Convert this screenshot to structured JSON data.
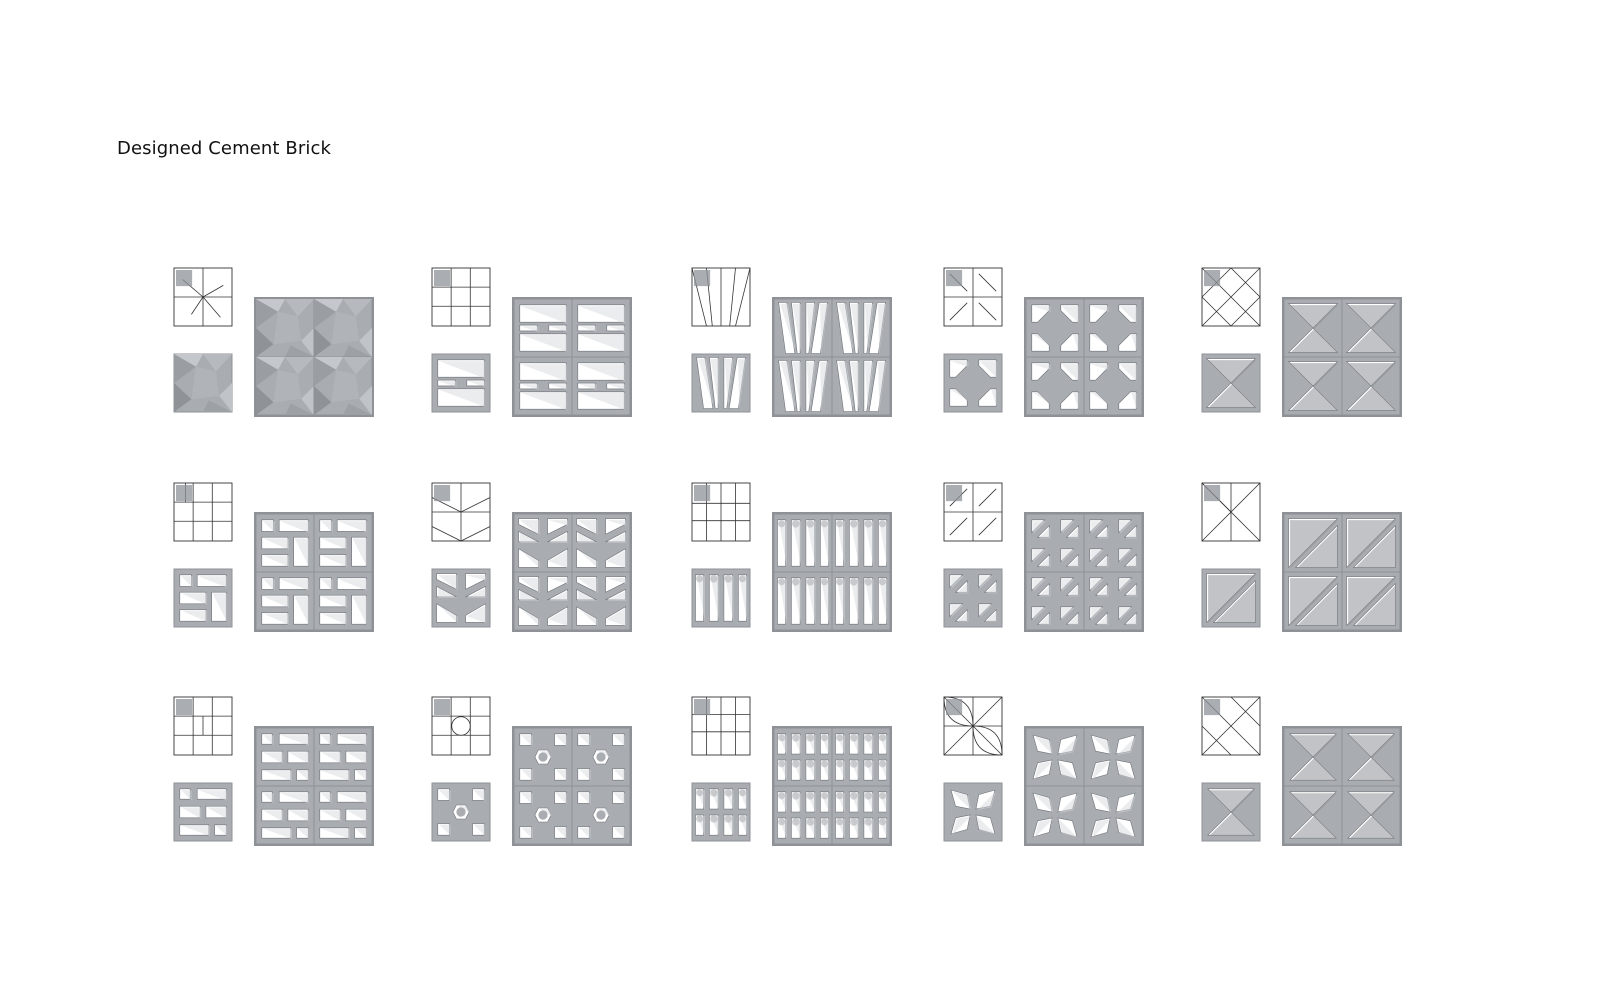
{
  "page": {
    "title": "Designed Cement Brick"
  },
  "colors": {
    "background": "#ffffff",
    "cement": "#a9adb1",
    "cement_dark": "#8e9297",
    "shadow": "#6f747a",
    "line": "#333333",
    "void": "#ffffff"
  },
  "grid": {
    "rows": 3,
    "columns": 5,
    "array_tiles_per_side": 2
  },
  "bricks": [
    {
      "pattern": "faceted"
    },
    {
      "pattern": "window-grid"
    },
    {
      "pattern": "vertical-slats"
    },
    {
      "pattern": "zigzag-cells"
    },
    {
      "pattern": "diamond-pyramid"
    },
    {
      "pattern": "offset-grid"
    },
    {
      "pattern": "chevron"
    },
    {
      "pattern": "arches"
    },
    {
      "pattern": "diagonal-cells"
    },
    {
      "pattern": "triangle-quadrants"
    },
    {
      "pattern": "small-windows"
    },
    {
      "pattern": "circle-cutout"
    },
    {
      "pattern": "arches-double"
    },
    {
      "pattern": "petal"
    },
    {
      "pattern": "triangle-diagonal"
    }
  ]
}
